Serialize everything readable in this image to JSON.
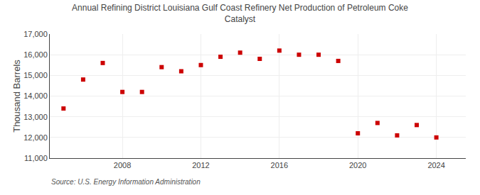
{
  "chart_data": {
    "type": "scatter",
    "title": "Annual Refining District Louisiana Gulf Coast Refinery Net Production of Petroleum Coke\nCatalyst",
    "ylabel": "Thousand Barrels",
    "annotations": [
      "Source: U.S. Energy Information Administration"
    ],
    "x": [
      2005,
      2006,
      2007,
      2008,
      2009,
      2010,
      2011,
      2012,
      2013,
      2014,
      2015,
      2016,
      2017,
      2018,
      2019,
      2020,
      2021,
      2022,
      2023,
      2024
    ],
    "values": [
      13400,
      14800,
      15600,
      14200,
      14200,
      15400,
      15200,
      15500,
      15900,
      16100,
      15800,
      16200,
      16000,
      16000,
      15700,
      12200,
      12700,
      12100,
      12600,
      12000
    ],
    "color": "#cc0000",
    "marker": "square",
    "xlim": [
      2004.3,
      2025.5
    ],
    "xticks": [
      2008,
      2012,
      2016,
      2020,
      2024
    ],
    "ylim": [
      11000,
      17000
    ],
    "yticks": [
      {
        "value": 11000,
        "label": "11,000"
      },
      {
        "value": 12000,
        "label": "12,000"
      },
      {
        "value": 13000,
        "label": "13,000"
      },
      {
        "value": 14000,
        "label": "14,000"
      },
      {
        "value": 15000,
        "label": "15,000"
      },
      {
        "value": 16000,
        "label": "16,000"
      },
      {
        "value": 17000,
        "label": "17,000"
      }
    ],
    "grid": true
  }
}
